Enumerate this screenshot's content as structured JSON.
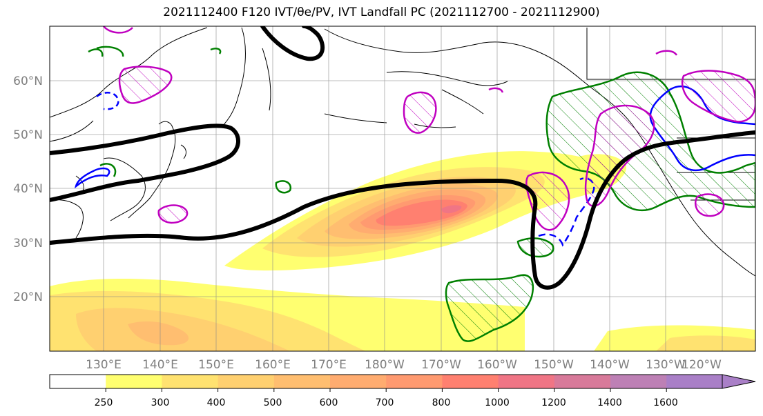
{
  "title": "2021112400 F120 IVT/θe/PV, IVT Landfall PC (2021112700 - 2021112900)",
  "latitude_labels": [
    "60°N",
    "50°N",
    "40°N",
    "30°N",
    "20°N"
  ],
  "longitude_labels": [
    "130°E",
    "140°E",
    "150°E",
    "160°E",
    "170°E",
    "180°W",
    "170°W",
    "160°W",
    "150°W",
    "140°W",
    "130°W",
    "120°W"
  ],
  "colorbar": {
    "ticks": [
      "250",
      "300",
      "400",
      "500",
      "600",
      "700",
      "800",
      "1000",
      "1200",
      "1400",
      "1600"
    ],
    "colors": [
      "#ffffff",
      "#ffff70",
      "#ffe270",
      "#ffd070",
      "#ffbe70",
      "#ffac70",
      "#ff9a70",
      "#ff8070",
      "#f07585",
      "#d87a9a",
      "#bd80b5",
      "#a97fc7"
    ],
    "extend": "max"
  },
  "legend_colors": {
    "ivt_landfall_pc": "#008000",
    "theta_e": "#0000ff",
    "pv": "#c000c0",
    "jet": "#000000"
  }
}
